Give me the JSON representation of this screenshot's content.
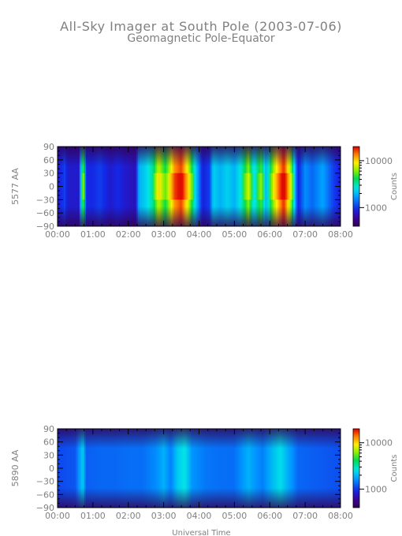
{
  "title": "All-Sky Imager at South Pole (2003-07-06)",
  "subtitle": "Geomagnetic Pole-Equator",
  "chart_data": [
    {
      "type": "heatmap",
      "ylabel": "5577 AA",
      "xlabel": "",
      "xlim": [
        0,
        8
      ],
      "ylim": [
        -90,
        90
      ],
      "xticks": [
        "00:00",
        "01:00",
        "02:00",
        "03:00",
        "04:00",
        "05:00",
        "06:00",
        "07:00",
        "08:00"
      ],
      "yticks": [
        "90",
        "60",
        "30",
        "0",
        "−30",
        "−60",
        "−90"
      ],
      "colorbar": {
        "label": "Counts",
        "scale": "log",
        "range": [
          400,
          20000
        ],
        "ticks": [
          "10000",
          "1000"
        ]
      },
      "mean_intensity_by_hour": [
        [
          0.0,
          0.18
        ],
        [
          0.1,
          0.22
        ],
        [
          0.2,
          0.25
        ],
        [
          0.3,
          0.18
        ],
        [
          0.6,
          0.18
        ],
        [
          0.72,
          0.7
        ],
        [
          0.8,
          0.22
        ],
        [
          1.0,
          0.22
        ],
        [
          1.2,
          0.25
        ],
        [
          1.5,
          0.18
        ],
        [
          1.7,
          0.22
        ],
        [
          1.9,
          0.18
        ],
        [
          2.2,
          0.15
        ],
        [
          2.3,
          0.4
        ],
        [
          2.5,
          0.45
        ],
        [
          2.7,
          0.55
        ],
        [
          2.85,
          0.75
        ],
        [
          3.05,
          0.6
        ],
        [
          3.3,
          0.88
        ],
        [
          3.5,
          0.95
        ],
        [
          3.7,
          0.75
        ],
        [
          3.9,
          0.45
        ],
        [
          4.1,
          0.2
        ],
        [
          4.3,
          0.25
        ],
        [
          4.4,
          0.45
        ],
        [
          4.6,
          0.4
        ],
        [
          4.8,
          0.45
        ],
        [
          5.0,
          0.4
        ],
        [
          5.2,
          0.5
        ],
        [
          5.4,
          0.7
        ],
        [
          5.55,
          0.45
        ],
        [
          5.75,
          0.65
        ],
        [
          5.9,
          0.4
        ],
        [
          6.1,
          0.7
        ],
        [
          6.25,
          0.85
        ],
        [
          6.4,
          0.97
        ],
        [
          6.6,
          0.7
        ],
        [
          6.8,
          0.2
        ],
        [
          7.0,
          0.35
        ],
        [
          7.2,
          0.3
        ],
        [
          7.5,
          0.38
        ],
        [
          7.8,
          0.25
        ],
        [
          8.0,
          0.2
        ]
      ]
    },
    {
      "type": "heatmap",
      "ylabel": "5890 AA",
      "xlabel": "Universal Time",
      "xlim": [
        0,
        8
      ],
      "ylim": [
        -90,
        90
      ],
      "xticks": [
        "00:00",
        "01:00",
        "02:00",
        "03:00",
        "04:00",
        "05:00",
        "06:00",
        "07:00",
        "08:00"
      ],
      "yticks": [
        "90",
        "60",
        "30",
        "0",
        "−30",
        "−60",
        "−90"
      ],
      "colorbar": {
        "label": "Counts",
        "scale": "log",
        "range": [
          400,
          20000
        ],
        "ticks": [
          "10000",
          "1000"
        ]
      },
      "mean_intensity_by_hour": [
        [
          0.0,
          0.26
        ],
        [
          0.5,
          0.28
        ],
        [
          0.72,
          0.45
        ],
        [
          0.8,
          0.29
        ],
        [
          1.2,
          0.3
        ],
        [
          1.6,
          0.3
        ],
        [
          2.0,
          0.31
        ],
        [
          2.4,
          0.31
        ],
        [
          2.8,
          0.35
        ],
        [
          3.0,
          0.4
        ],
        [
          3.2,
          0.33
        ],
        [
          3.4,
          0.44
        ],
        [
          3.6,
          0.48
        ],
        [
          3.8,
          0.36
        ],
        [
          4.2,
          0.32
        ],
        [
          4.6,
          0.31
        ],
        [
          5.0,
          0.31
        ],
        [
          5.4,
          0.4
        ],
        [
          5.6,
          0.36
        ],
        [
          5.8,
          0.33
        ],
        [
          6.1,
          0.42
        ],
        [
          6.3,
          0.47
        ],
        [
          6.5,
          0.4
        ],
        [
          6.8,
          0.3
        ],
        [
          7.2,
          0.29
        ],
        [
          7.6,
          0.28
        ],
        [
          8.0,
          0.27
        ]
      ]
    }
  ]
}
